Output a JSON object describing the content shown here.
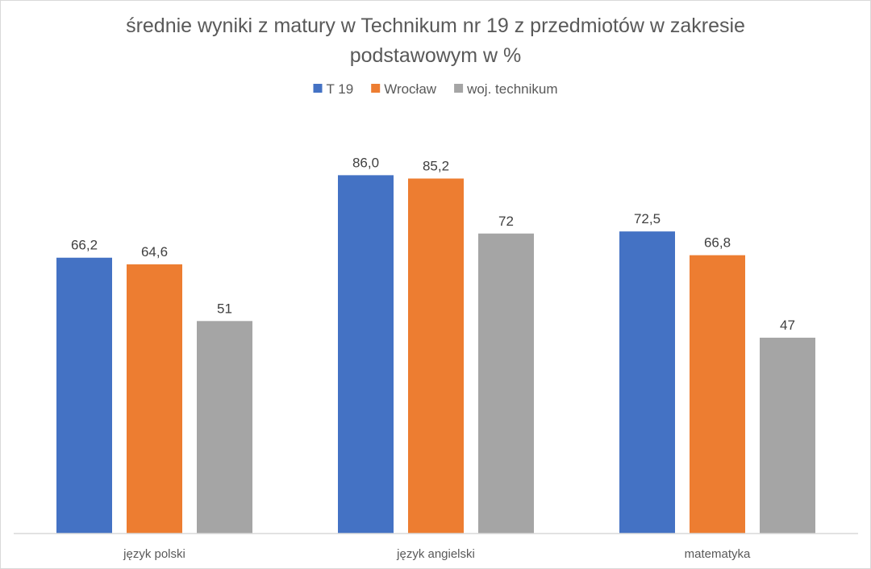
{
  "chart_data": {
    "type": "bar",
    "title_lines": [
      "średnie wyniki z matury w Technikum nr 19  z przedmiotów w zakresie",
      "podstawowym w %"
    ],
    "categories": [
      "język polski",
      "język angielski",
      "matematyka"
    ],
    "series": [
      {
        "name": "T 19",
        "color": "#4472c4",
        "values": [
          66.2,
          86.0,
          72.5
        ],
        "labels": [
          "66,2",
          "86,0",
          "72,5"
        ]
      },
      {
        "name": "Wrocław",
        "color": "#ed7d31",
        "values": [
          64.6,
          85.2,
          66.8
        ],
        "labels": [
          "64,6",
          "85,2",
          "66,8"
        ]
      },
      {
        "name": "woj. technikum",
        "color": "#a5a5a5",
        "values": [
          51,
          72,
          47
        ],
        "labels": [
          "51",
          "72",
          "47"
        ]
      }
    ],
    "ylim": [
      0,
      100
    ],
    "grid": false,
    "legend_position": "top"
  }
}
